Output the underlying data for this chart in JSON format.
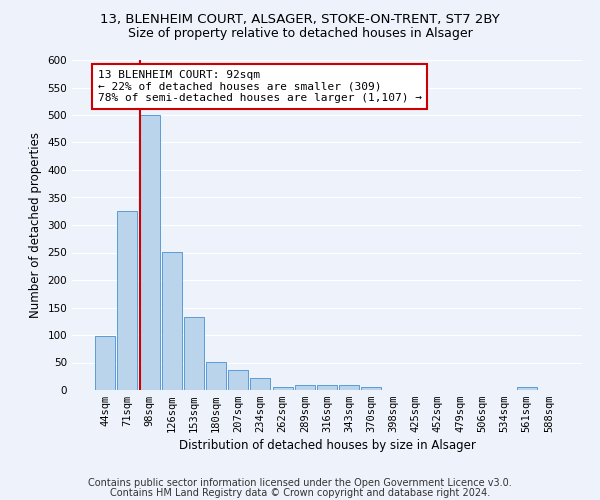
{
  "title_line1": "13, BLENHEIM COURT, ALSAGER, STOKE-ON-TRENT, ST7 2BY",
  "title_line2": "Size of property relative to detached houses in Alsager",
  "xlabel": "Distribution of detached houses by size in Alsager",
  "ylabel": "Number of detached properties",
  "categories": [
    "44sqm",
    "71sqm",
    "98sqm",
    "126sqm",
    "153sqm",
    "180sqm",
    "207sqm",
    "234sqm",
    "262sqm",
    "289sqm",
    "316sqm",
    "343sqm",
    "370sqm",
    "398sqm",
    "425sqm",
    "452sqm",
    "479sqm",
    "506sqm",
    "534sqm",
    "561sqm",
    "588sqm"
  ],
  "values": [
    98,
    325,
    500,
    251,
    133,
    51,
    36,
    21,
    5,
    10,
    10,
    10,
    5,
    0,
    0,
    0,
    0,
    0,
    0,
    5,
    0
  ],
  "bar_color": "#bad4ec",
  "bar_edge_color": "#5b9bd5",
  "red_line_color": "#cc0000",
  "annotation_text": "13 BLENHEIM COURT: 92sqm\n← 22% of detached houses are smaller (309)\n78% of semi-detached houses are larger (1,107) →",
  "annotation_box_facecolor": "white",
  "annotation_box_edgecolor": "#cc0000",
  "ylim": [
    0,
    600
  ],
  "yticks": [
    0,
    50,
    100,
    150,
    200,
    250,
    300,
    350,
    400,
    450,
    500,
    550,
    600
  ],
  "footnote_line1": "Contains HM Land Registry data © Crown copyright and database right 2024.",
  "footnote_line2": "Contains public sector information licensed under the Open Government Licence v3.0.",
  "background_color": "#eef2fa",
  "grid_color": "white",
  "title_fontsize": 9.5,
  "subtitle_fontsize": 9,
  "axis_label_fontsize": 8.5,
  "tick_fontsize": 7.5,
  "annotation_fontsize": 8,
  "footnote_fontsize": 7
}
